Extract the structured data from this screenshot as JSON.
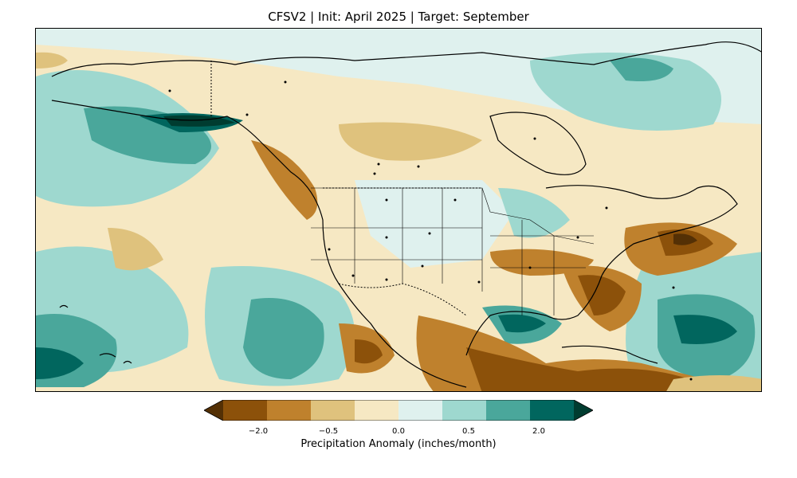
{
  "title": "CFSV2 | Init: April 2025 | Target: September",
  "colorbar": {
    "label": "Precipitation Anomaly (inches/month)",
    "ticks": [
      "−2.0",
      "−0.5",
      "0.0",
      "0.5",
      "2.0"
    ],
    "tick_values": [
      -2.0,
      -0.5,
      0.0,
      0.5,
      2.0
    ],
    "bins": [
      {
        "color": "#543005"
      },
      {
        "color": "#8c510a"
      },
      {
        "color": "#bf812d"
      },
      {
        "color": "#dfc27d"
      },
      {
        "color": "#f6e8c3"
      },
      {
        "color": "#dff1ee"
      },
      {
        "color": "#9ed8cf"
      },
      {
        "color": "#4aa79b"
      },
      {
        "color": "#01665e"
      },
      {
        "color": "#003c30"
      }
    ]
  }
}
